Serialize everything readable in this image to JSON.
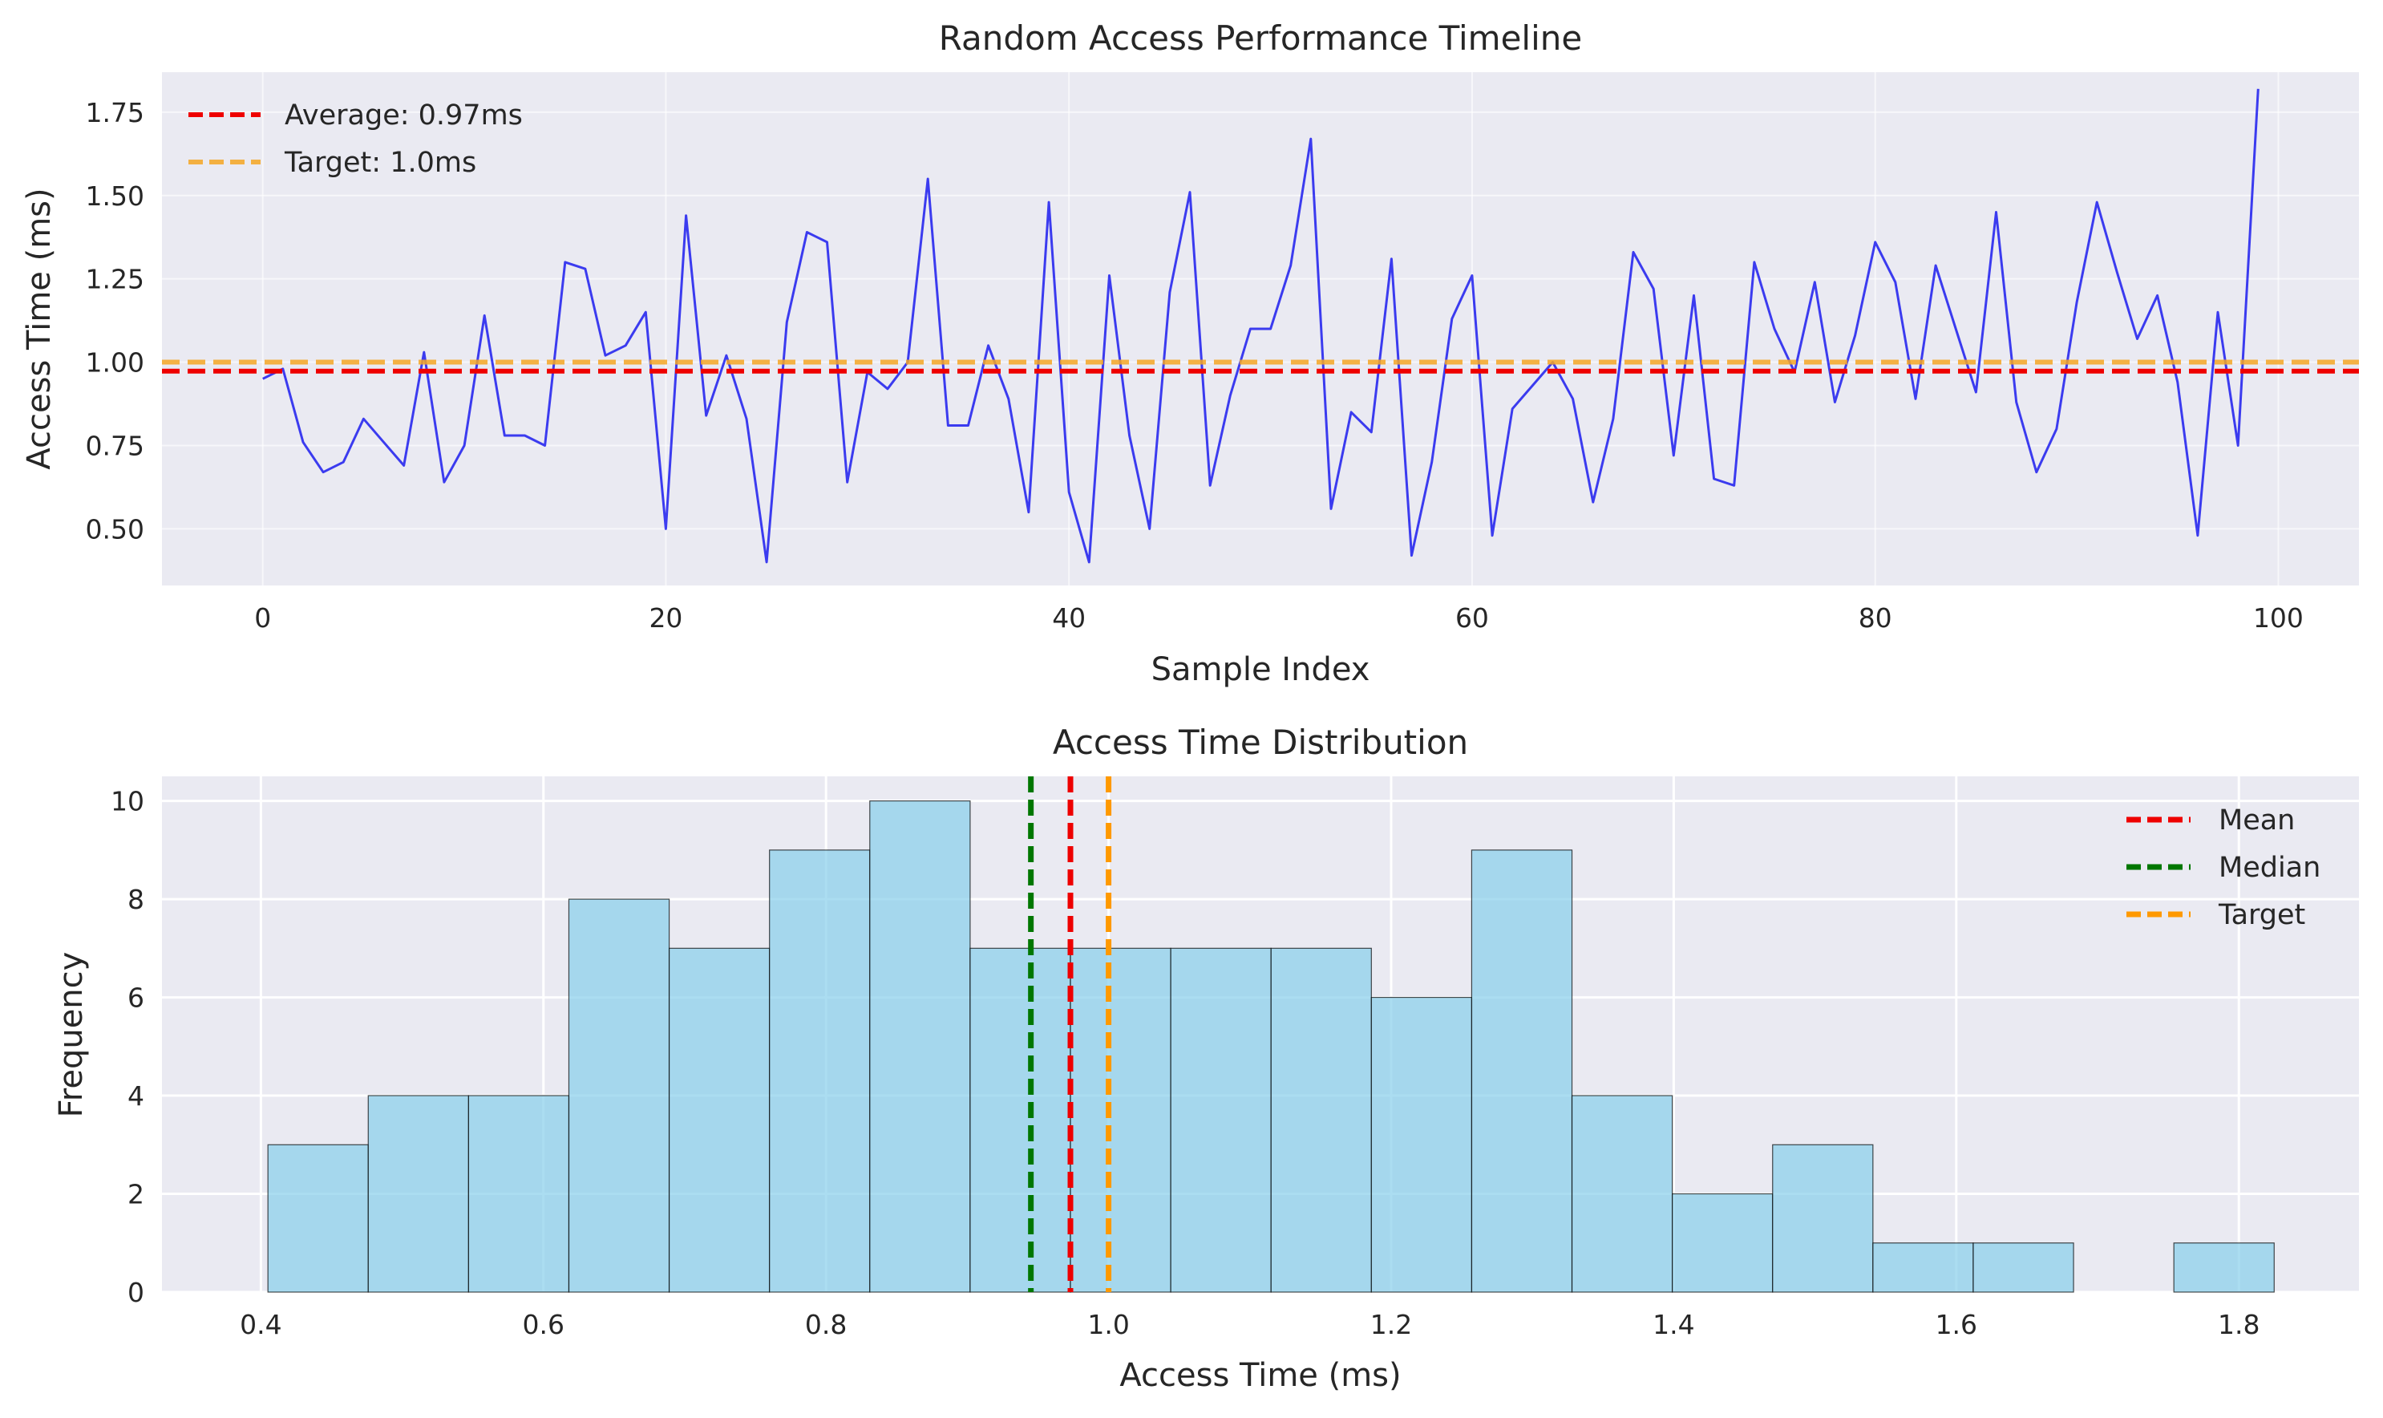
{
  "chart_data": [
    {
      "type": "line",
      "title": "Random Access Performance Timeline",
      "xlabel": "Sample Index",
      "ylabel": "Access Time (ms)",
      "xlim": [
        -5,
        104
      ],
      "ylim": [
        0.33,
        1.87
      ],
      "xticks": [
        0,
        20,
        40,
        60,
        80,
        100
      ],
      "yticks": [
        0.5,
        0.75,
        1.0,
        1.25,
        1.5,
        1.75
      ],
      "grid": true,
      "legend_position": "top-left",
      "series": [
        {
          "color": "#0000ee",
          "x": [
            0,
            1,
            2,
            3,
            4,
            5,
            6,
            7,
            8,
            9,
            10,
            11,
            12,
            13,
            14,
            15,
            16,
            17,
            18,
            19,
            20,
            21,
            22,
            23,
            24,
            25,
            26,
            27,
            28,
            29,
            30,
            31,
            32,
            33,
            34,
            35,
            36,
            37,
            38,
            39,
            40,
            41,
            42,
            43,
            44,
            45,
            46,
            47,
            48,
            49,
            50,
            51,
            52,
            53,
            54,
            55,
            56,
            57,
            58,
            59,
            60,
            61,
            62,
            63,
            64,
            65,
            66,
            67,
            68,
            69,
            70,
            71,
            72,
            73,
            74,
            75,
            76,
            77,
            78,
            79,
            80,
            81,
            82,
            83,
            84,
            85,
            86,
            87,
            88,
            89,
            90,
            91,
            92,
            93,
            94,
            95,
            96,
            97,
            98,
            99
          ],
          "y": [
            0.95,
            0.98,
            0.76,
            0.67,
            0.7,
            0.83,
            0.76,
            0.69,
            1.03,
            0.64,
            0.75,
            1.14,
            0.78,
            0.78,
            0.75,
            1.3,
            1.28,
            1.02,
            1.05,
            1.15,
            0.5,
            1.44,
            0.84,
            1.02,
            0.83,
            0.4,
            1.12,
            1.39,
            1.36,
            0.64,
            0.97,
            0.92,
            1.0,
            1.55,
            0.81,
            0.81,
            1.05,
            0.89,
            0.55,
            1.48,
            0.61,
            0.4,
            1.26,
            0.78,
            0.5,
            1.21,
            1.51,
            0.63,
            0.9,
            1.1,
            1.1,
            1.29,
            1.67,
            0.56,
            0.85,
            0.79,
            1.31,
            0.42,
            0.7,
            1.13,
            1.26,
            0.48,
            0.86,
            0.93,
            1.0,
            0.89,
            0.58,
            0.83,
            1.33,
            1.22,
            0.72,
            1.2,
            0.65,
            0.63,
            1.3,
            1.1,
            0.97,
            1.24,
            0.88,
            1.08,
            1.36,
            1.24,
            0.89,
            1.29,
            1.1,
            0.91,
            1.45,
            0.88,
            0.67,
            0.8,
            1.18,
            1.48,
            1.27,
            1.07,
            1.2,
            0.94,
            0.48,
            1.15,
            0.75,
            1.82
          ]
        }
      ],
      "hlines": [
        {
          "label": "Average: 0.97ms",
          "value": 0.973,
          "color": "#ee0000"
        },
        {
          "label": "Target: 1.0ms",
          "value": 1.0,
          "color": "#f5a623"
        }
      ]
    },
    {
      "type": "bar",
      "title": "Access Time Distribution",
      "xlabel": "Access Time (ms)",
      "ylabel": "Frequency",
      "xlim": [
        0.33,
        1.885
      ],
      "ylim": [
        0,
        10.5
      ],
      "xticks": [
        0.4,
        0.6,
        0.8,
        1.0,
        1.2,
        1.4,
        1.6,
        1.8
      ],
      "yticks": [
        0,
        2,
        4,
        6,
        8,
        10
      ],
      "grid": true,
      "legend_position": "top-right",
      "bin_edges": [
        0.405,
        0.476,
        0.547,
        0.618,
        0.689,
        0.76,
        0.831,
        0.902,
        0.973,
        1.044,
        1.115,
        1.186,
        1.257,
        1.328,
        1.399,
        1.47,
        1.541,
        1.612,
        1.683,
        1.754,
        1.825
      ],
      "values": [
        3,
        4,
        4,
        8,
        7,
        9,
        10,
        7,
        7,
        7,
        7,
        6,
        9,
        4,
        2,
        3,
        1,
        1,
        0,
        1
      ],
      "bar_color": "#87ceeb",
      "vlines": [
        {
          "label": "Mean",
          "value": 0.973,
          "color": "#ee0000"
        },
        {
          "label": "Median",
          "value": 0.945,
          "color": "#007700"
        },
        {
          "label": "Target",
          "value": 1.0,
          "color": "#ff9900"
        }
      ]
    }
  ]
}
